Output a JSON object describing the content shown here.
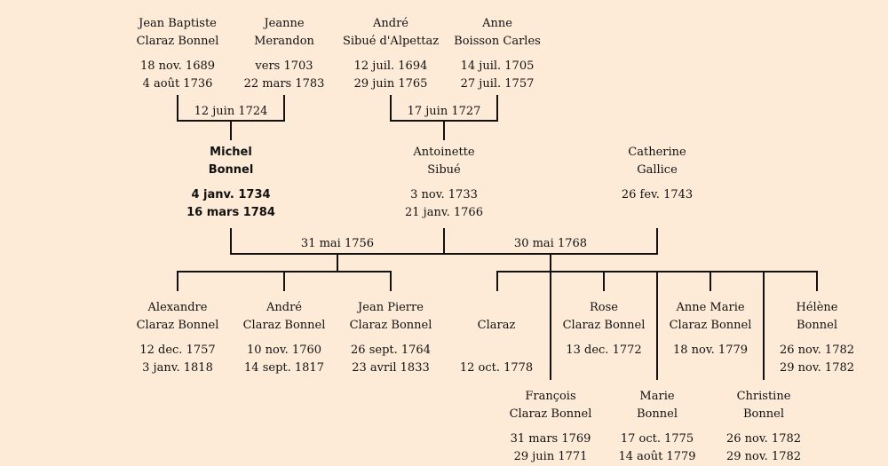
{
  "persons": [
    {
      "id": "jean_baptiste",
      "first": "Jean Baptiste",
      "last": "Claraz Bonnel",
      "birth": "18 nov. 1689",
      "death": "4 août 1736"
    },
    {
      "id": "jeanne",
      "first": "Jeanne",
      "last": "Merandon",
      "birth": "vers 1703",
      "death": "22 mars 1783"
    },
    {
      "id": "andre_sibue",
      "first": "André",
      "last": "Sibué d'Alpettaz",
      "birth": "12 juil. 1694",
      "death": "29 juin 1765"
    },
    {
      "id": "anne",
      "first": "Anne",
      "last": "Boisson Carles",
      "birth": "14 juil. 1705",
      "death": "27 juil. 1757"
    },
    {
      "id": "michel",
      "first": "Michel",
      "last": "Bonnel",
      "birth": "4 janv. 1734",
      "death": "16 mars 1784"
    },
    {
      "id": "antoinette",
      "first": "Antoinette",
      "last": "Sibué",
      "birth": "3 nov. 1733",
      "death": "21 janv. 1766"
    },
    {
      "id": "catherine",
      "first": "Catherine",
      "last": "Gallice",
      "birth": "26 fev. 1743",
      "death": ""
    },
    {
      "id": "alexandre",
      "first": "Alexandre",
      "last": "Claraz Bonnel",
      "birth": "12 dec. 1757",
      "death": "3 janv. 1818"
    },
    {
      "id": "andre_claraz",
      "first": "André",
      "last": "Claraz Bonnel",
      "birth": "10 nov. 1760",
      "death": "14 sept. 1817"
    },
    {
      "id": "jean_pierre",
      "first": "Jean Pierre",
      "last": "Claraz Bonnel",
      "birth": "26 sept. 1764",
      "death": "23 avril 1833"
    },
    {
      "id": "claraz",
      "first": "",
      "last": "Claraz",
      "birth": "",
      "death": "12 oct. 1778"
    },
    {
      "id": "francois",
      "first": "François",
      "last": "Claraz Bonnel",
      "birth": "31 mars 1769",
      "death": "29 juin 1771"
    },
    {
      "id": "rose",
      "first": "Rose",
      "last": "Claraz Bonnel",
      "birth": "13 dec. 1772",
      "death": ""
    },
    {
      "id": "marie",
      "first": "Marie",
      "last": "Bonnel",
      "birth": "17 oct. 1775",
      "death": "14 août 1779"
    },
    {
      "id": "anne_marie",
      "first": "Anne Marie",
      "last": "Claraz Bonnel",
      "birth": "18 nov. 1779",
      "death": ""
    },
    {
      "id": "christine",
      "first": "Christine",
      "last": "Bonnel",
      "birth": "26 nov. 1782",
      "death": "29 nov. 1782"
    },
    {
      "id": "helene",
      "first": "Hélène",
      "last": "Bonnel",
      "birth": "26 nov. 1782",
      "death": "29 nov. 1782"
    }
  ],
  "marriages": [
    {
      "id": "m1",
      "date": "12 juin 1724"
    },
    {
      "id": "m2",
      "date": "17 juin 1727"
    },
    {
      "id": "m3",
      "date": "31 mai 1756"
    },
    {
      "id": "m4",
      "date": "30 mai 1768"
    }
  ]
}
